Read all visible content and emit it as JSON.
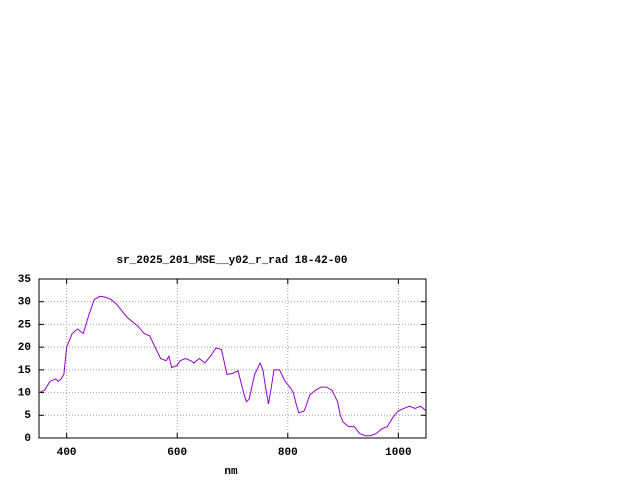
{
  "chart_data": {
    "type": "line",
    "title": "sr_2025_201_MSE__y02_r_rad 18-42-00",
    "x_label": "nm",
    "xlim": [
      350,
      1050
    ],
    "xticks": [
      400,
      600,
      800,
      1000
    ],
    "ylim": [
      0,
      35
    ],
    "yticks": [
      0,
      5,
      10,
      15,
      20,
      25,
      30,
      35
    ],
    "grid": true,
    "x": [
      350,
      360,
      370,
      380,
      385,
      390,
      395,
      400,
      410,
      420,
      425,
      430,
      440,
      450,
      460,
      470,
      480,
      490,
      500,
      510,
      520,
      530,
      540,
      550,
      560,
      570,
      580,
      585,
      590,
      600,
      605,
      615,
      625,
      630,
      640,
      650,
      660,
      670,
      680,
      690,
      700,
      710,
      720,
      725,
      730,
      740,
      750,
      755,
      760,
      765,
      770,
      775,
      785,
      795,
      805,
      810,
      815,
      820,
      830,
      840,
      850,
      860,
      870,
      880,
      890,
      895,
      900,
      910,
      920,
      930,
      940,
      950,
      960,
      970,
      980,
      990,
      1000,
      1010,
      1020,
      1030,
      1040,
      1050
    ],
    "series": [
      {
        "color": "#9400d3",
        "values": [
          10,
          10.5,
          12.5,
          13,
          12.5,
          13,
          14,
          20,
          23,
          24,
          23.5,
          23,
          27,
          30.5,
          31.2,
          31,
          30.5,
          29.5,
          28,
          26.5,
          25.5,
          24.5,
          23,
          22.5,
          20,
          17.5,
          17,
          18,
          15.5,
          16,
          17,
          17.5,
          17,
          16.5,
          17.5,
          16.5,
          18,
          19.8,
          19.5,
          14,
          14.2,
          14.8,
          10,
          8,
          8.5,
          14,
          16.5,
          15,
          11,
          7.5,
          11,
          15,
          15,
          12.5,
          11,
          10,
          7.5,
          5.5,
          6,
          9.5,
          10.5,
          11.2,
          11.2,
          10.5,
          8,
          5,
          3.5,
          2.5,
          2.5,
          1,
          0.5,
          0.5,
          1,
          2,
          2.5,
          4.5,
          6,
          6.5,
          7,
          6.5,
          7,
          6
        ]
      }
    ]
  }
}
